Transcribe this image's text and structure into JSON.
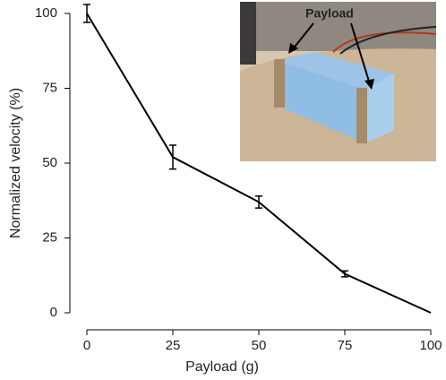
{
  "chart_data": {
    "type": "line",
    "x_label": "Payload (g)",
    "y_label": "Normalized velocity (%)",
    "x": [
      0,
      25,
      50,
      75,
      100
    ],
    "values": [
      100,
      52,
      37,
      13,
      0
    ],
    "errors": [
      3,
      4,
      2,
      1,
      null
    ],
    "color": "#000000",
    "xlim": [
      0,
      100
    ],
    "xticks": [
      0,
      25,
      50,
      75,
      100
    ],
    "ylim": [
      0,
      100
    ],
    "yticks": [
      0,
      25,
      50,
      75,
      100
    ],
    "inset_label": "Payload"
  }
}
